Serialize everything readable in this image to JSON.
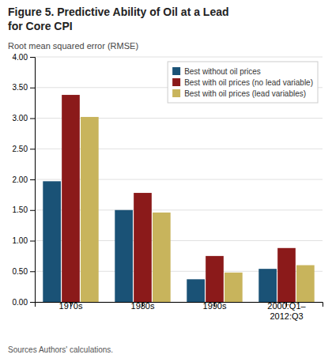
{
  "chart_data": {
    "type": "bar",
    "title": "Figure 5. Predictive Ability of Oil at a Lead\nfor Core CPI",
    "ylabel": "Root mean squared error (RMSE)",
    "footnote": "Sources Authors' calculations.",
    "categories": [
      "1970s",
      "1980s",
      "1990s",
      "2000:Q1–\n2012:Q3"
    ],
    "series": [
      {
        "name": "Best without oil prices",
        "color": "#1a5276",
        "values": [
          1.97,
          1.5,
          0.37,
          0.54
        ]
      },
      {
        "name": "Best with oil prices (no lead variable)",
        "color": "#8b1a1a",
        "values": [
          3.38,
          1.78,
          0.75,
          0.88
        ]
      },
      {
        "name": "Best with oil prices (lead variables)",
        "color": "#c8b45c",
        "values": [
          3.02,
          1.46,
          0.48,
          0.6
        ]
      }
    ],
    "ylim": [
      0,
      4.0
    ],
    "yticks": [
      {
        "value": 0,
        "label": "0.00"
      },
      {
        "value": 0.5,
        "label": "0.50"
      },
      {
        "value": 1,
        "label": "1.00"
      },
      {
        "value": 1.5,
        "label": "1.50"
      },
      {
        "value": 2,
        "label": "2.00"
      },
      {
        "value": 2.5,
        "label": "2.50"
      },
      {
        "value": 3,
        "label": "3.00"
      },
      {
        "value": 3.5,
        "label": "3.50"
      },
      {
        "value": 4,
        "label": "4.00"
      }
    ],
    "grid": true,
    "legend": "upper right"
  }
}
